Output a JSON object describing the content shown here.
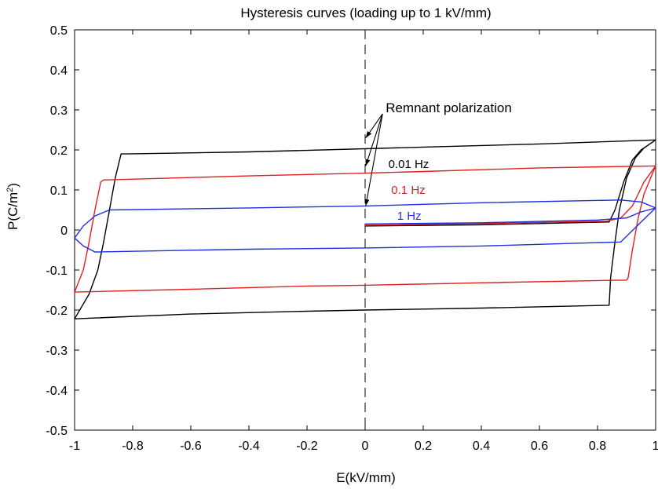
{
  "chart_data": {
    "type": "line",
    "title": "Hysteresis curves (loading up to 1 kV/mm)",
    "xlabel": "E(kV/mm)",
    "ylabel_main": "P(C/m",
    "ylabel_sup": "2",
    "ylabel_end": ")",
    "xlim": [
      -1,
      1
    ],
    "ylim": [
      -0.5,
      0.5
    ],
    "xticks": [
      -1,
      -0.8,
      -0.6,
      -0.4,
      -0.2,
      0,
      0.2,
      0.4,
      0.6,
      0.8,
      1
    ],
    "yticks": [
      0.5,
      0.4,
      0.3,
      0.2,
      0.1,
      0,
      -0.1,
      -0.2,
      -0.3,
      -0.4,
      -0.5
    ],
    "xtick_labels": [
      "-1",
      "-0.8",
      "-0.6",
      "-0.4",
      "-0.2",
      "0",
      "0.2",
      "0.4",
      "0.6",
      "0.8",
      "1"
    ],
    "ytick_labels": [
      "0.5",
      "0.4",
      "0.3",
      "0.2",
      "0.1",
      "0",
      "-0.1",
      "-0.2",
      "-0.3",
      "-0.4",
      "-0.5"
    ],
    "grid": false,
    "reference_line": {
      "x": 0,
      "style": "dashed"
    },
    "annotation": {
      "text": "Remnant polarization",
      "arrow_tail": [
        0.06,
        0.29
      ],
      "arrow_heads": [
        [
          0.002,
          0.23
        ],
        [
          0.002,
          0.16
        ],
        [
          0.002,
          0.06
        ]
      ]
    },
    "series": [
      {
        "name": "0.01 Hz",
        "color": "#000000",
        "label_anchor": [
          0.08,
          0.165
        ],
        "points": [
          [
            0,
            0.01
          ],
          [
            0.4,
            0.013
          ],
          [
            0.84,
            0.02
          ],
          [
            0.86,
            0.05
          ],
          [
            0.89,
            0.12
          ],
          [
            0.92,
            0.175
          ],
          [
            0.95,
            0.2
          ],
          [
            1,
            0.225
          ],
          [
            0.6,
            0.215
          ],
          [
            0.2,
            0.207
          ],
          [
            0,
            0.203
          ],
          [
            -0.4,
            0.195
          ],
          [
            -0.82,
            0.19
          ],
          [
            -0.84,
            0.19
          ],
          [
            -0.86,
            0.13
          ],
          [
            -0.88,
            0.05
          ],
          [
            -0.9,
            -0.03
          ],
          [
            -0.92,
            -0.1
          ],
          [
            -0.95,
            -0.16
          ],
          [
            -1,
            -0.222
          ],
          [
            -0.6,
            -0.21
          ],
          [
            -0.2,
            -0.203
          ],
          [
            0,
            -0.2
          ],
          [
            0.4,
            -0.195
          ],
          [
            0.84,
            -0.188
          ],
          [
            0.845,
            -0.12
          ],
          [
            0.86,
            -0.03
          ],
          [
            0.875,
            0.05
          ],
          [
            0.9,
            0.13
          ],
          [
            0.93,
            0.18
          ],
          [
            0.96,
            0.205
          ],
          [
            1,
            0.225
          ]
        ]
      },
      {
        "name": "0.1 Hz",
        "color": "#e02020",
        "label_anchor": [
          0.09,
          0.1
        ],
        "points": [
          [
            0,
            0.012
          ],
          [
            0.4,
            0.016
          ],
          [
            0.83,
            0.022
          ],
          [
            0.88,
            0.03
          ],
          [
            0.92,
            0.06
          ],
          [
            0.96,
            0.12
          ],
          [
            1,
            0.16
          ],
          [
            0.6,
            0.155
          ],
          [
            0.2,
            0.146
          ],
          [
            0,
            0.142
          ],
          [
            -0.4,
            0.135
          ],
          [
            -0.9,
            0.125
          ],
          [
            -0.91,
            0.12
          ],
          [
            -0.93,
            0.05
          ],
          [
            -0.95,
            -0.03
          ],
          [
            -0.97,
            -0.1
          ],
          [
            -1,
            -0.155
          ],
          [
            -0.6,
            -0.148
          ],
          [
            -0.2,
            -0.14
          ],
          [
            0,
            -0.138
          ],
          [
            0.4,
            -0.132
          ],
          [
            0.9,
            -0.125
          ],
          [
            0.905,
            -0.12
          ],
          [
            0.92,
            -0.05
          ],
          [
            0.94,
            0.03
          ],
          [
            0.96,
            0.09
          ],
          [
            1,
            0.16
          ]
        ]
      },
      {
        "name": "1 Hz",
        "color": "#1f2fe0",
        "label_anchor": [
          0.11,
          0.035
        ],
        "points": [
          [
            0,
            0.015
          ],
          [
            0.4,
            0.018
          ],
          [
            0.8,
            0.025
          ],
          [
            0.86,
            0.028
          ],
          [
            0.9,
            0.03
          ],
          [
            0.95,
            0.045
          ],
          [
            1,
            0.055
          ],
          [
            0.95,
            0.07
          ],
          [
            0.88,
            0.075
          ],
          [
            0.4,
            0.068
          ],
          [
            0,
            0.06
          ],
          [
            -0.4,
            0.055
          ],
          [
            -0.88,
            0.05
          ],
          [
            -0.93,
            0.035
          ],
          [
            -0.97,
            0.01
          ],
          [
            -1,
            -0.02
          ],
          [
            -0.97,
            -0.04
          ],
          [
            -0.93,
            -0.055
          ],
          [
            -0.4,
            -0.048
          ],
          [
            0,
            -0.045
          ],
          [
            0.4,
            -0.04
          ],
          [
            0.88,
            -0.03
          ],
          [
            0.95,
            0.02
          ],
          [
            1,
            0.055
          ]
        ]
      }
    ]
  }
}
